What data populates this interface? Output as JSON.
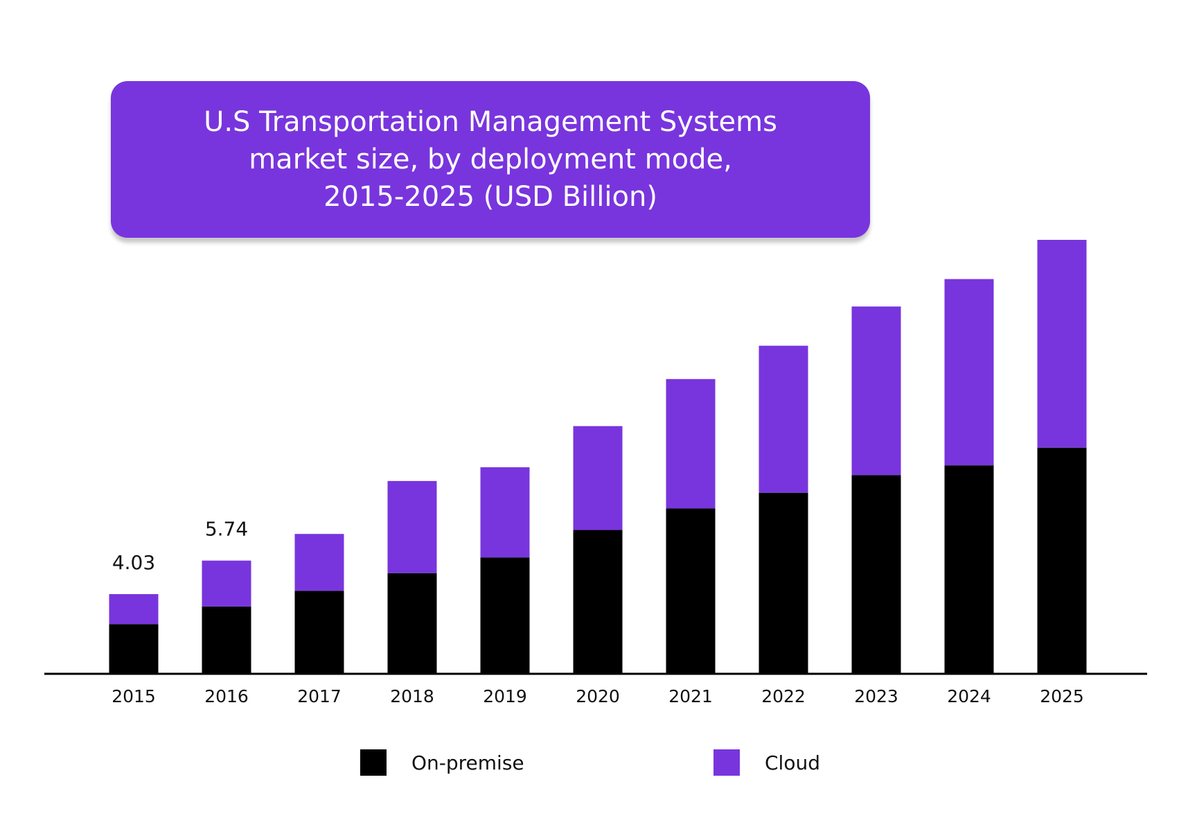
{
  "title": {
    "lines": [
      "U.S Transportation Management Systems",
      "market size, by deployment mode,",
      "2015-2025 (USD Billion)"
    ]
  },
  "colors": {
    "title_bg": "#7835dd",
    "on_premise": "#000000",
    "cloud": "#7835dd",
    "axis": "#000000"
  },
  "chart_data": {
    "type": "bar",
    "stacked": true,
    "categories": [
      "2015",
      "2016",
      "2017",
      "2018",
      "2019",
      "2020",
      "2021",
      "2022",
      "2023",
      "2024",
      "2025"
    ],
    "series": [
      {
        "name": "On-premise",
        "values": [
          2.5,
          3.4,
          4.2,
          5.1,
          5.9,
          7.3,
          8.4,
          9.2,
          10.1,
          10.6,
          11.5
        ]
      },
      {
        "name": "Cloud",
        "values": [
          1.53,
          2.34,
          2.9,
          4.7,
          4.6,
          5.3,
          6.6,
          7.5,
          8.6,
          9.5,
          10.6
        ]
      }
    ],
    "data_labels": [
      {
        "category": "2015",
        "text": "4.03"
      },
      {
        "category": "2016",
        "text": "5.74"
      }
    ],
    "legend": {
      "position": "bottom",
      "items": [
        "On-premise",
        "Cloud"
      ]
    },
    "grid": false,
    "ylim": [
      0,
      22.1
    ]
  }
}
